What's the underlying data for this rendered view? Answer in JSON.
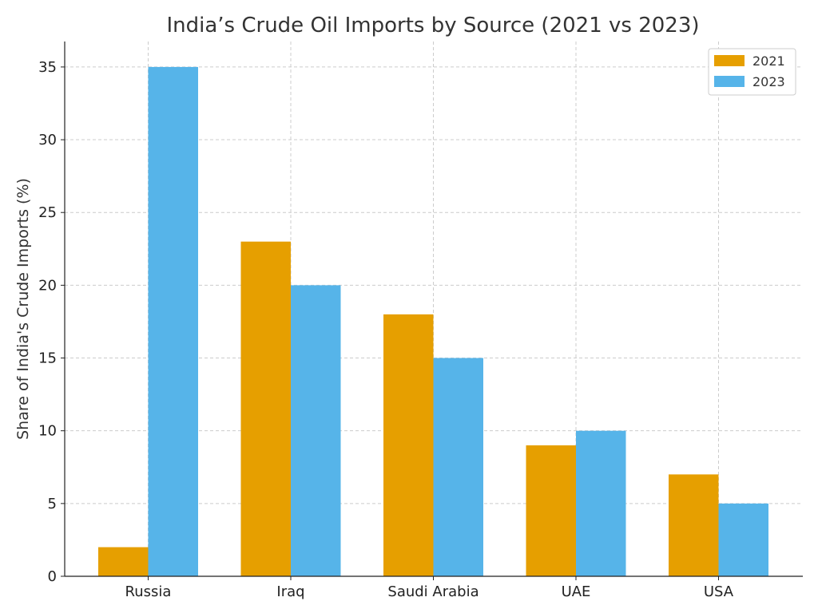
{
  "chart_data": {
    "type": "bar",
    "title": "India’s Crude Oil Imports by Source (2021 vs 2023)",
    "xlabel": "",
    "ylabel": "Share of India's Crude Imports (%)",
    "categories": [
      "Russia",
      "Iraq",
      "Saudi Arabia",
      "UAE",
      "USA"
    ],
    "series": [
      {
        "name": "2021",
        "values": [
          2,
          23,
          18,
          9,
          7
        ],
        "color": "#E69F00"
      },
      {
        "name": "2023",
        "values": [
          35,
          20,
          15,
          10,
          5
        ],
        "color": "#56B4E9"
      }
    ],
    "ylim": [
      0,
      36.75
    ],
    "yticks": [
      0,
      5,
      10,
      15,
      20,
      25,
      30,
      35
    ],
    "grid": true,
    "legend": "top-right"
  }
}
